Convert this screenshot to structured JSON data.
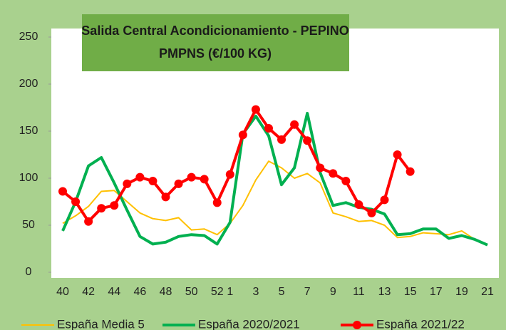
{
  "chart_data": {
    "type": "line",
    "title": "Salida Central Acondicionamiento - PEPINO",
    "subtitle": "PMPNS (€/100 KG)",
    "categories": [
      "40",
      null,
      "42",
      null,
      "44",
      null,
      "46",
      null,
      "48",
      null,
      "50",
      null,
      "52",
      "1",
      null,
      "3",
      null,
      "5",
      null,
      "7",
      null,
      "9",
      null,
      "11",
      null,
      "13",
      null,
      "15",
      null,
      "17",
      null,
      "19",
      null,
      "21"
    ],
    "series": [
      {
        "name": "España Media 5",
        "color": "#ffc000",
        "values": [
          52,
          60,
          70,
          86,
          87,
          75,
          63,
          57,
          55,
          58,
          45,
          46,
          40,
          52,
          71,
          98,
          118,
          111,
          100,
          105,
          95,
          63,
          59,
          54,
          55,
          50,
          37,
          38,
          42,
          41,
          40,
          44,
          35,
          29
        ]
      },
      {
        "name": "España 2020/2021",
        "color": "#00b050",
        "values": [
          44,
          75,
          113,
          122,
          95,
          66,
          38,
          30,
          32,
          38,
          40,
          39,
          30,
          53,
          147,
          166,
          145,
          93,
          111,
          169,
          106,
          71,
          74,
          69,
          67,
          62,
          40,
          41,
          46,
          46,
          36,
          39,
          35,
          29
        ]
      },
      {
        "name": "España 2021/22",
        "color": "#ff0000",
        "values": [
          86,
          75,
          54,
          68,
          71,
          94,
          101,
          97,
          80,
          94,
          101,
          99,
          74,
          104,
          146,
          173,
          153,
          141,
          157,
          140,
          111,
          105,
          97,
          72,
          63,
          77,
          125,
          107,
          null,
          null,
          null,
          null,
          null,
          null
        ]
      }
    ],
    "ylim": [
      0,
      250
    ],
    "yticks": [
      0,
      50,
      100,
      150,
      200,
      250
    ]
  }
}
